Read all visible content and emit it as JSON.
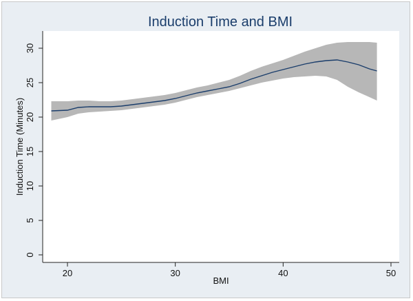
{
  "chart_data": {
    "type": "line",
    "title": "Induction Time and BMI",
    "xlabel": "BMI",
    "ylabel": "Induction Time (Minutes)",
    "xlim": [
      18,
      50
    ],
    "ylim": [
      0,
      32
    ],
    "xticks": [
      20,
      30,
      40,
      50
    ],
    "yticks": [
      0,
      5,
      10,
      15,
      20,
      25,
      30
    ],
    "grid": false,
    "legend": "none",
    "line_color": "#1a3d6b",
    "band_color": "#b7b7b7",
    "x": [
      18.5,
      20,
      21,
      22,
      23,
      24,
      25,
      26,
      27,
      28,
      29,
      30,
      31,
      32,
      33,
      34,
      35,
      36,
      37,
      38,
      39,
      40,
      41,
      42,
      43,
      44,
      45,
      46,
      47,
      48,
      48.7
    ],
    "fit": [
      20.9,
      21.0,
      21.4,
      21.5,
      21.5,
      21.5,
      21.6,
      21.8,
      22.0,
      22.2,
      22.4,
      22.7,
      23.1,
      23.5,
      23.8,
      24.1,
      24.4,
      24.9,
      25.5,
      26.0,
      26.5,
      26.9,
      27.3,
      27.7,
      28.0,
      28.2,
      28.3,
      28.0,
      27.6,
      27.0,
      26.7
    ],
    "lower": [
      19.5,
      20.0,
      20.5,
      20.7,
      20.8,
      20.9,
      21.0,
      21.2,
      21.4,
      21.6,
      21.8,
      22.1,
      22.5,
      22.9,
      23.2,
      23.5,
      23.8,
      24.2,
      24.6,
      25.0,
      25.3,
      25.6,
      25.8,
      25.9,
      26.0,
      25.9,
      25.4,
      24.4,
      23.6,
      22.9,
      22.4
    ],
    "upper": [
      22.3,
      22.3,
      22.4,
      22.4,
      22.3,
      22.3,
      22.4,
      22.6,
      22.8,
      23.0,
      23.2,
      23.5,
      23.9,
      24.3,
      24.6,
      25.0,
      25.4,
      26.0,
      26.7,
      27.3,
      27.8,
      28.3,
      28.9,
      29.5,
      30.0,
      30.5,
      30.8,
      30.9,
      30.9,
      30.9,
      30.8
    ]
  }
}
